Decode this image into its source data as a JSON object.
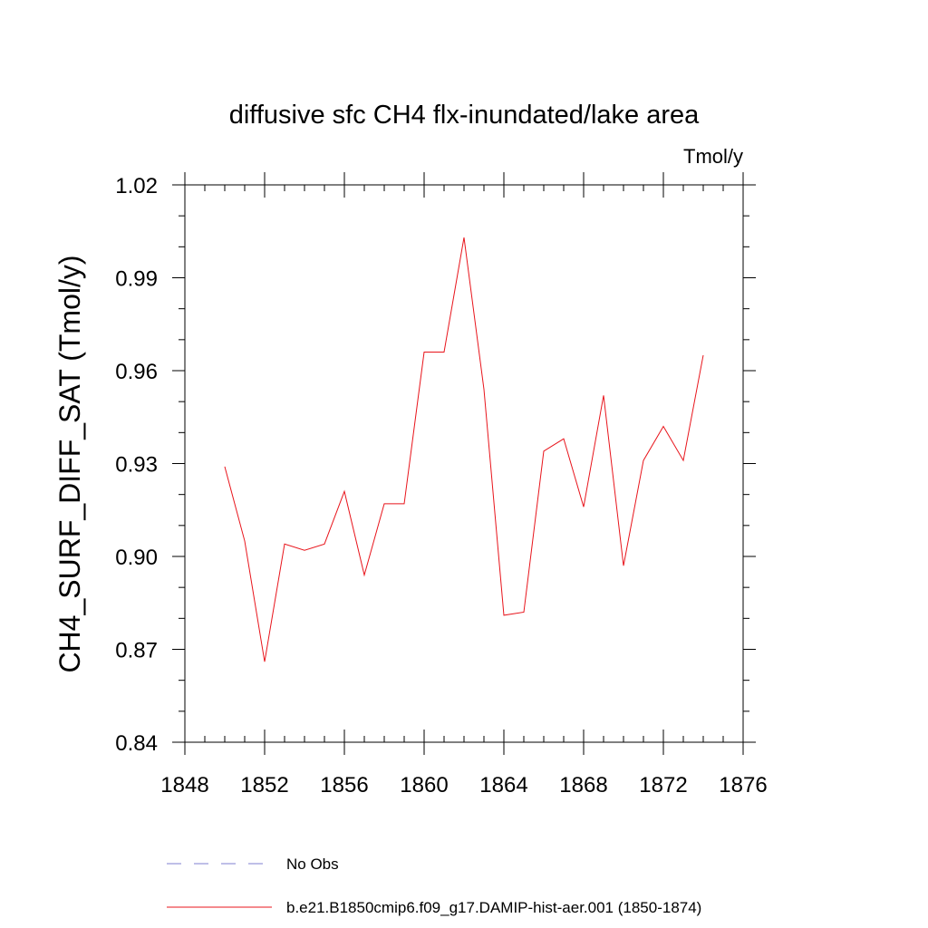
{
  "chart_data": {
    "type": "line",
    "title": "diffusive sfc CH4 flx-inundated/lake area",
    "units": "Tmol/y",
    "xlabel": "",
    "ylabel": "CH4_SURF_DIFF_SAT  (Tmol/y)",
    "xlim": [
      1848,
      1876
    ],
    "ylim": [
      0.84,
      1.02
    ],
    "x_ticks": [
      "1848",
      "1852",
      "1856",
      "1860",
      "1864",
      "1868",
      "1872",
      "1876"
    ],
    "y_ticks": [
      "0.84",
      "0.87",
      "0.90",
      "0.93",
      "0.96",
      "0.99",
      "1.02"
    ],
    "grid": false,
    "legend_position": "bottom",
    "series": [
      {
        "name": "b.e21.B1850cmip6.f09_g17.DAMIP-hist-aer.001 (1850-1874)",
        "color": "#e8141b",
        "style": "solid",
        "x": [
          1850,
          1851,
          1852,
          1853,
          1854,
          1855,
          1856,
          1857,
          1858,
          1859,
          1860,
          1861,
          1862,
          1863,
          1864,
          1865,
          1866,
          1867,
          1868,
          1869,
          1870,
          1871,
          1872,
          1873,
          1874
        ],
        "values": [
          0.929,
          0.905,
          0.866,
          0.904,
          0.902,
          0.904,
          0.921,
          0.894,
          0.917,
          0.917,
          0.966,
          0.966,
          1.003,
          0.954,
          0.881,
          0.882,
          0.934,
          0.938,
          0.916,
          0.952,
          0.897,
          0.931,
          0.942,
          0.931,
          0.965
        ]
      }
    ],
    "legend": [
      {
        "label": "No Obs",
        "color": "#7f7fd0",
        "style": "dashed"
      },
      {
        "label": "b.e21.B1850cmip6.f09_g17.DAMIP-hist-aer.001 (1850-1874)",
        "color": "#e8141b",
        "style": "solid"
      }
    ]
  }
}
